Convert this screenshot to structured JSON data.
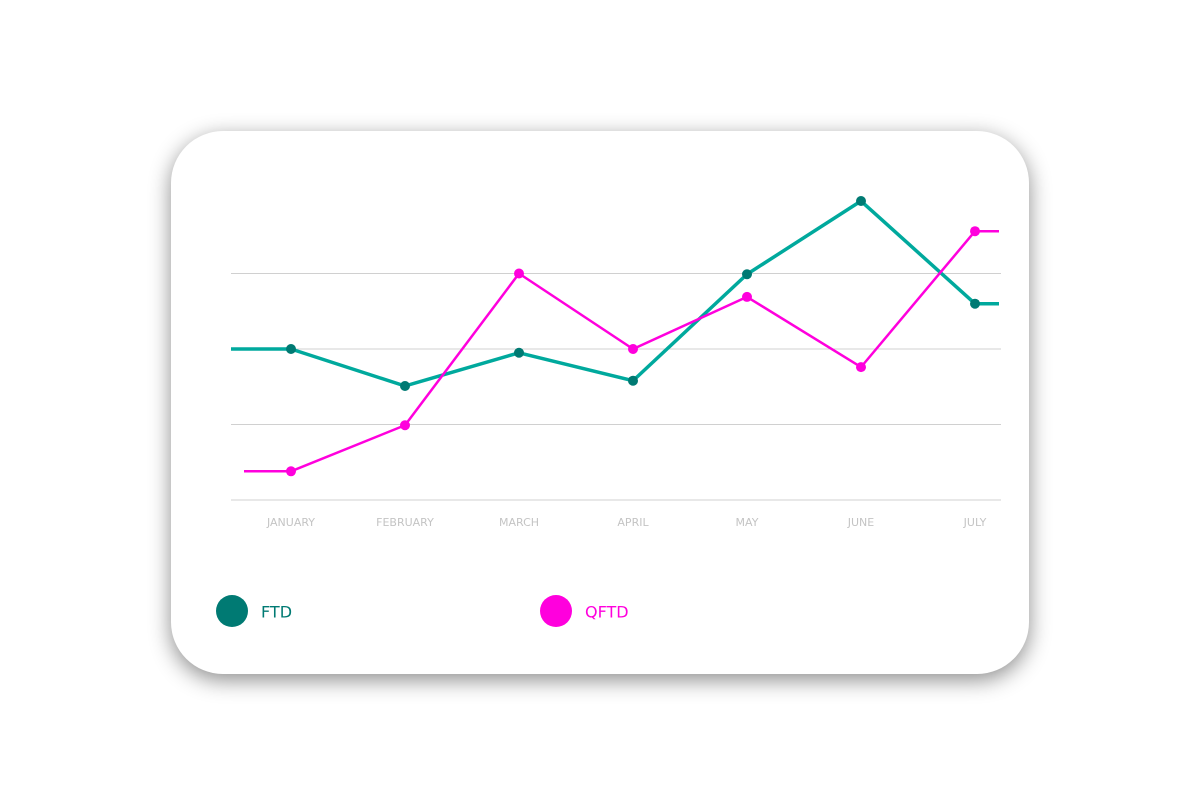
{
  "chart_data": {
    "type": "line",
    "categories": [
      "JANUARY",
      "FEBRUARY",
      "MARCH",
      "APRIL",
      "MAY",
      "JUNE",
      "JULY"
    ],
    "series": [
      {
        "name": "FTD",
        "color": "#00a99d",
        "marker_color": "#007a73",
        "values": [
          2.0,
          1.51,
          1.95,
          1.58,
          2.99,
          3.96,
          2.6
        ]
      },
      {
        "name": "QFTD",
        "color": "#ff00dd",
        "marker_color": "#ff00dd",
        "values": [
          0.38,
          0.99,
          3.0,
          2.0,
          2.69,
          1.76,
          3.56
        ]
      }
    ],
    "ylim": [
      0,
      4
    ],
    "yticks": [
      0,
      1,
      2,
      3
    ],
    "grid": true
  }
}
